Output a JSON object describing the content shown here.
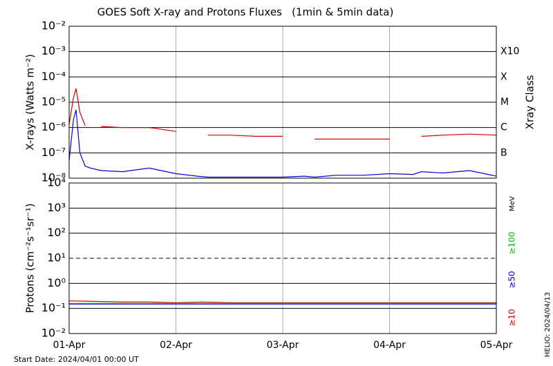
{
  "chart_data": [
    {
      "type": "line",
      "title": "GOES Soft X-ray and Protons Fluxes   (1min & 5min data)",
      "ylabel": "X-rays (Watts m⁻²)",
      "y2label": "Xray Class",
      "log_scale": true,
      "grid": true,
      "x": [
        0,
        0.04,
        0.065,
        0.1,
        0.15,
        0.2,
        0.3,
        0.5,
        0.75,
        1.0,
        1.2,
        1.3,
        1.5,
        1.75,
        2.0,
        2.2,
        2.3,
        2.5,
        2.75,
        3.0,
        3.22,
        3.3,
        3.5,
        3.75,
        4.0
      ],
      "xlim": [
        0,
        4
      ],
      "xticks": [
        0,
        1,
        2,
        3,
        4
      ],
      "ylim": [
        1e-08,
        0.01
      ],
      "yticks": [
        {
          "value": 1e-08,
          "label": "10⁻⁸"
        },
        {
          "value": 1e-07,
          "label": "10⁻⁷"
        },
        {
          "value": 1e-06,
          "label": "10⁻⁶"
        },
        {
          "value": 1e-05,
          "label": "10⁻⁵"
        },
        {
          "value": 0.0001,
          "label": "10⁻⁴"
        },
        {
          "value": 0.001,
          "label": "10⁻³"
        },
        {
          "value": 0.01,
          "label": "10⁻²"
        }
      ],
      "y2lim": [
        1e-08,
        0.01
      ],
      "y2ticks": [
        {
          "value": 1e-07,
          "label": "B"
        },
        {
          "value": 1e-06,
          "label": "C"
        },
        {
          "value": 1e-05,
          "label": "M"
        },
        {
          "value": 0.0001,
          "label": "X"
        },
        {
          "value": 0.001,
          "label": "X10"
        }
      ],
      "series": [
        {
          "color": "#d00000",
          "values": [
            1.3e-06,
            1.5e-05,
            3.5e-05,
            4e-06,
            1.2e-06,
            null,
            1.1e-06,
            1e-06,
            1e-06,
            7e-07,
            null,
            5e-07,
            5e-07,
            4.5e-07,
            4.5e-07,
            null,
            3.5e-07,
            3.5e-07,
            3.5e-07,
            3.5e-07,
            null,
            4.5e-07,
            5e-07,
            5.5e-07,
            5e-07
          ]
        },
        {
          "color": "#0000d0",
          "values": [
            5e-08,
            2e-06,
            5e-06,
            1e-07,
            3e-08,
            2.5e-08,
            2e-08,
            1.8e-08,
            2.5e-08,
            1.5e-08,
            1.2e-08,
            1.1e-08,
            1.1e-08,
            1.1e-08,
            1.1e-08,
            1.2e-08,
            1.1e-08,
            1.3e-08,
            1.3e-08,
            1.5e-08,
            1.4e-08,
            1.8e-08,
            1.6e-08,
            2e-08,
            1.2e-08
          ]
        }
      ]
    },
    {
      "type": "line",
      "ylabel": "Protons (cm⁻²s⁻¹sr⁻¹)",
      "units": "MeV",
      "log_scale": true,
      "grid": true,
      "dashed_line": 10,
      "x": [
        0,
        0.25,
        0.5,
        0.75,
        1.0,
        1.25,
        1.5,
        1.75,
        2.0,
        2.25,
        2.5,
        2.75,
        3.0,
        3.25,
        3.5,
        3.75,
        4.0
      ],
      "xlim": [
        0,
        4
      ],
      "xticks": [
        {
          "value": 0,
          "label": "01-Apr"
        },
        {
          "value": 1,
          "label": "02-Apr"
        },
        {
          "value": 2,
          "label": "03-Apr"
        },
        {
          "value": 3,
          "label": "04-Apr"
        },
        {
          "value": 4,
          "label": "05-Apr"
        }
      ],
      "ylim": [
        0.01,
        10000
      ],
      "yticks": [
        {
          "value": 0.01,
          "label": "10⁻²"
        },
        {
          "value": 0.1,
          "label": "10⁻¹"
        },
        {
          "value": 1,
          "label": "10⁰"
        },
        {
          "value": 10,
          "label": "10¹"
        },
        {
          "value": 100,
          "label": "10²"
        },
        {
          "value": 1000,
          "label": "10³"
        },
        {
          "value": 10000,
          "label": "10⁴"
        }
      ],
      "series": [
        {
          "name": "≥10",
          "color": "#d00000",
          "values": [
            0.2,
            0.19,
            0.18,
            0.18,
            0.17,
            0.18,
            0.17,
            0.17,
            0.17,
            0.17,
            0.17,
            0.17,
            0.17,
            0.17,
            0.17,
            0.17,
            0.17
          ]
        },
        {
          "name": "≥50",
          "color": "#0000d0",
          "values": [
            0.15,
            0.15,
            0.15,
            0.15,
            0.15,
            0.15,
            0.15,
            0.15,
            0.15,
            0.15,
            0.15,
            0.15,
            0.15,
            0.15,
            0.15,
            0.15,
            0.15
          ]
        },
        {
          "name": "≥100",
          "color": "#00c000",
          "values": [
            0.16,
            0.16,
            0.16,
            0.16,
            0.16,
            0.16,
            0.16,
            0.16,
            0.16,
            0.16,
            0.16,
            0.16,
            0.16,
            0.16,
            0.16,
            0.16,
            0.16
          ]
        }
      ]
    }
  ],
  "footer": {
    "start": "Start Date: 2024/04/01 00:00 UT",
    "helio": "HELIO: 2024/04/13"
  }
}
